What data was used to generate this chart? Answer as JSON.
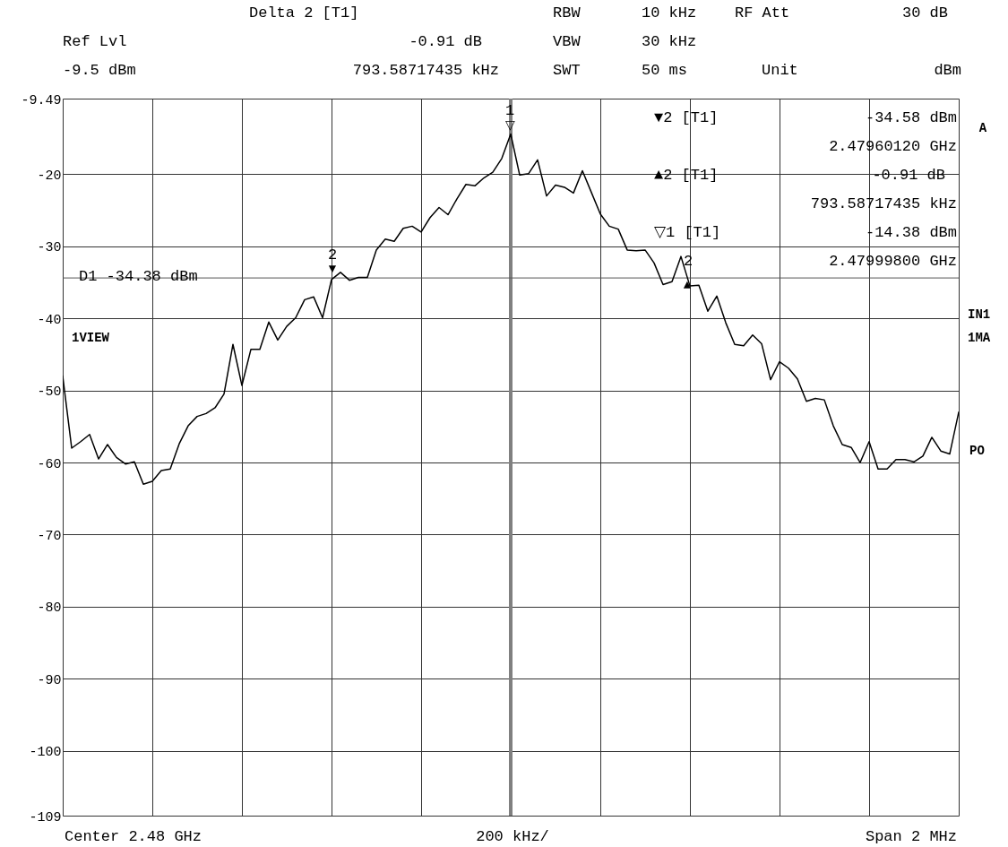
{
  "chart_data": {
    "type": "line",
    "categories": [
      null,
      null,
      null,
      null,
      null,
      null,
      null,
      null,
      null,
      null,
      null,
      null,
      null,
      null,
      null,
      null,
      null,
      null,
      null,
      null,
      null,
      null,
      null,
      null,
      null,
      null,
      null,
      null,
      null,
      null,
      null,
      null,
      null,
      null,
      null,
      null,
      null,
      null,
      null,
      null,
      null,
      null,
      null,
      null,
      null,
      null,
      null,
      null,
      null,
      null,
      null,
      null,
      null,
      null,
      null,
      null,
      null,
      null,
      null,
      null,
      null,
      null,
      null,
      null,
      null,
      null,
      null,
      null,
      null,
      null,
      null,
      null,
      null,
      null,
      null,
      null,
      null,
      null,
      null,
      null,
      null,
      null,
      null,
      null,
      null,
      null,
      null,
      null,
      null,
      null,
      null,
      null,
      null,
      null,
      null,
      null,
      null,
      null,
      null,
      null,
      null
    ],
    "ylim": [
      -109,
      -9.49
    ],
    "yticks": [
      -9.49,
      -20,
      -30,
      -40,
      -50,
      -60,
      -70,
      -80,
      -90,
      -100,
      -109
    ],
    "tick_labels": "y",
    "grid": true,
    "line_style": "solid",
    "marker": "none",
    "series": [
      {
        "color": "#000000",
        "values": [
          -48.0,
          -58.0,
          -57.1,
          -56.1,
          -59.5,
          -57.5,
          -59.3,
          -60.2,
          -59.9,
          -63.0,
          -62.6,
          -61.1,
          -60.9,
          -57.4,
          -54.9,
          -53.6,
          -53.2,
          -52.4,
          -50.5,
          -43.6,
          -49.3,
          -44.3,
          -44.3,
          -40.5,
          -43.0,
          -41.1,
          -39.9,
          -37.4,
          -37.0,
          -39.9,
          -34.6,
          -33.6,
          -34.7,
          -34.3,
          -34.3,
          -30.5,
          -29.0,
          -29.3,
          -27.5,
          -27.2,
          -28.0,
          -26.0,
          -24.6,
          -25.6,
          -23.4,
          -21.4,
          -21.6,
          -20.5,
          -19.7,
          -17.8,
          -14.4,
          -20.1,
          -19.9,
          -18.0,
          -23.0,
          -21.5,
          -21.8,
          -22.6,
          -19.5,
          -22.5,
          -25.5,
          -27.2,
          -27.6,
          -30.5,
          -30.6,
          -30.5,
          -32.3,
          -35.3,
          -34.9,
          -31.4,
          -35.5,
          -35.4,
          -39.0,
          -36.9,
          -40.6,
          -43.6,
          -43.8,
          -42.3,
          -43.5,
          -48.5,
          -46.0,
          -46.9,
          -48.4,
          -51.5,
          -51.1,
          -51.3,
          -54.9,
          -57.5,
          -57.9,
          -60.0,
          -57.1,
          -60.9,
          -60.9,
          -59.6,
          -59.6,
          -59.9,
          -59.1,
          -56.5,
          -58.4,
          -58.8,
          -53.0
        ]
      }
    ],
    "ref_lines": [
      {
        "axis": "y",
        "value": -34.38,
        "label": "D1 -34.38 dBm",
        "color": "#555555",
        "line_style": "solid"
      }
    ],
    "annotations": [
      "Delta 2 [T1]",
      "Ref Lvl",
      "-9.5 dBm",
      "-0.91 dB",
      "793.58717435 kHz",
      "RBW",
      "10 kHz",
      "VBW",
      "30 kHz",
      "SWT",
      "50 ms",
      "RF Att",
      "30 dB",
      "Unit",
      "dBm",
      "▼2 [T1]",
      "-34.58 dBm",
      "2.47960120 GHz",
      "▲2 [T1]",
      "-0.91 dB",
      "793.58717435 kHz",
      "▽1 [T1]",
      "-14.38 dBm",
      "2.47999800 GHz",
      "1VIEW",
      "A",
      "IN1",
      "1MA",
      "PO",
      "Center 2.48 GHz",
      "200 kHz/",
      "Span 2 MHz",
      "2",
      "▼",
      "1",
      "▽",
      "2",
      "▲"
    ]
  }
}
